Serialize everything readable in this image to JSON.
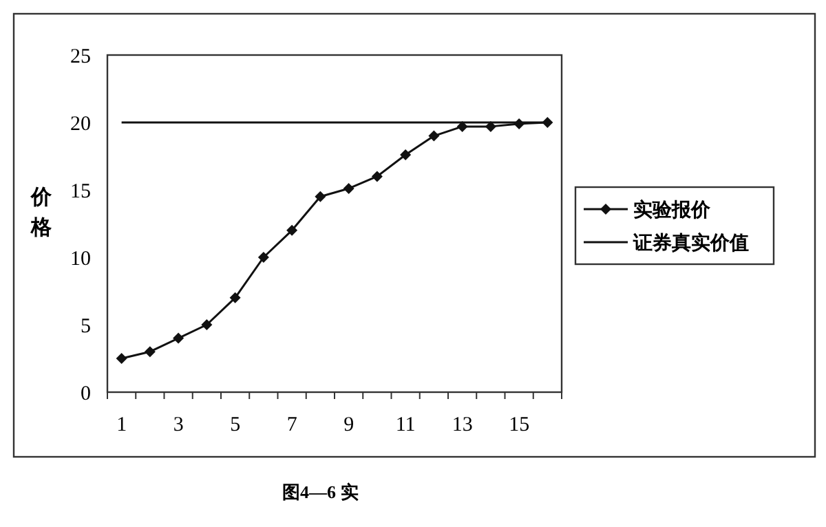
{
  "chart_data": {
    "type": "line",
    "ylabel": "价格",
    "x": [
      1,
      2,
      3,
      4,
      5,
      6,
      7,
      8,
      9,
      10,
      11,
      12,
      13,
      14,
      15,
      16
    ],
    "series": [
      {
        "name": "实验报价",
        "color": "#111111",
        "values": [
          2.5,
          3,
          4,
          5,
          7,
          10,
          12,
          14.5,
          15.1,
          16,
          17.6,
          19,
          19.7,
          19.7,
          19.9,
          20
        ],
        "marker": "diamond"
      },
      {
        "name": "证券真实价值",
        "color": "#111111",
        "values": [
          20,
          20,
          20,
          20,
          20,
          20,
          20,
          20,
          20,
          20,
          20,
          20,
          20,
          20,
          20,
          20
        ],
        "marker": "none"
      }
    ],
    "xlim": [
      0.5,
      16.5
    ],
    "xticks": [
      {
        "value": 0.5,
        "label": null
      },
      1,
      {
        "value": 1.5,
        "label": null
      },
      {
        "value": 2.5,
        "label": null
      },
      3,
      {
        "value": 3.5,
        "label": null
      },
      {
        "value": 4.5,
        "label": null
      },
      5,
      {
        "value": 5.5,
        "label": null
      },
      {
        "value": 6.5,
        "label": null
      },
      7,
      {
        "value": 7.5,
        "label": null
      },
      {
        "value": 8.5,
        "label": null
      },
      9,
      {
        "value": 9.5,
        "label": null
      },
      {
        "value": 10.5,
        "label": null
      },
      11,
      {
        "value": 11.5,
        "label": null
      },
      {
        "value": 12.5,
        "label": null
      },
      13,
      {
        "value": 13.5,
        "label": null
      },
      {
        "value": 14.5,
        "label": null
      },
      15,
      {
        "value": 15.5,
        "label": null
      },
      {
        "value": 16.5,
        "label": null
      }
    ],
    "ylim": [
      0,
      25
    ],
    "yticks": [
      0,
      5,
      10,
      15,
      20,
      25
    ],
    "grid": false,
    "legend": "right",
    "line_style": "solid",
    "annotations": [
      "图4—6 实"
    ]
  }
}
